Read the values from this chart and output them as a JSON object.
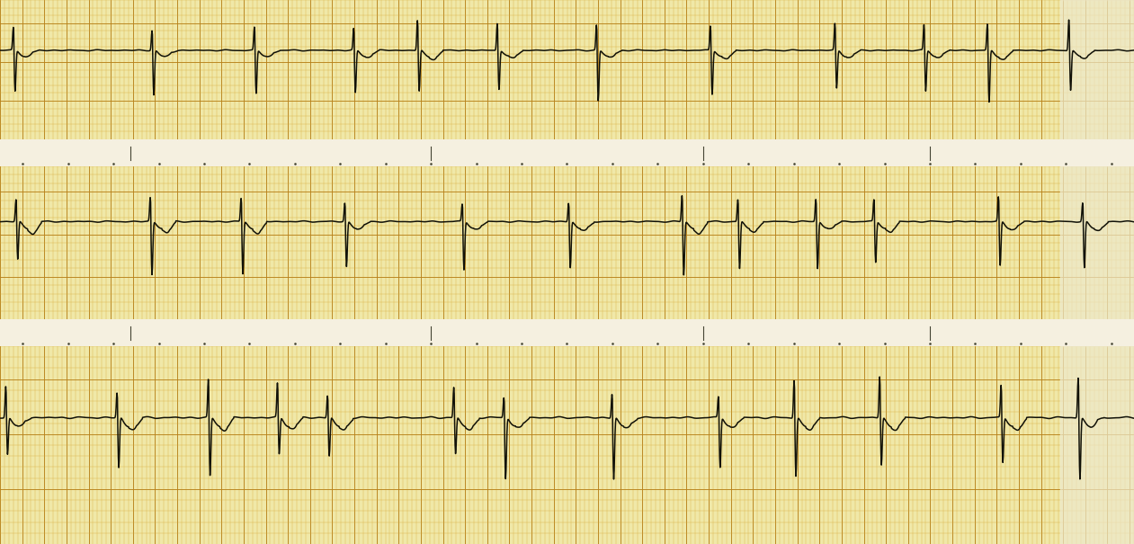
{
  "bg_color": "#f2dfa0",
  "grid_minor_color": "#d4a832",
  "grid_major_color": "#b8821a",
  "ecg_color": "#111108",
  "white_gap_color": "#f5f0e0",
  "paper_bg": "#f5f0e0",
  "right_band_color": "#ede8cc",
  "sep_tick_color": "#444433",
  "strip_facecolor": "#f0e8a8"
}
